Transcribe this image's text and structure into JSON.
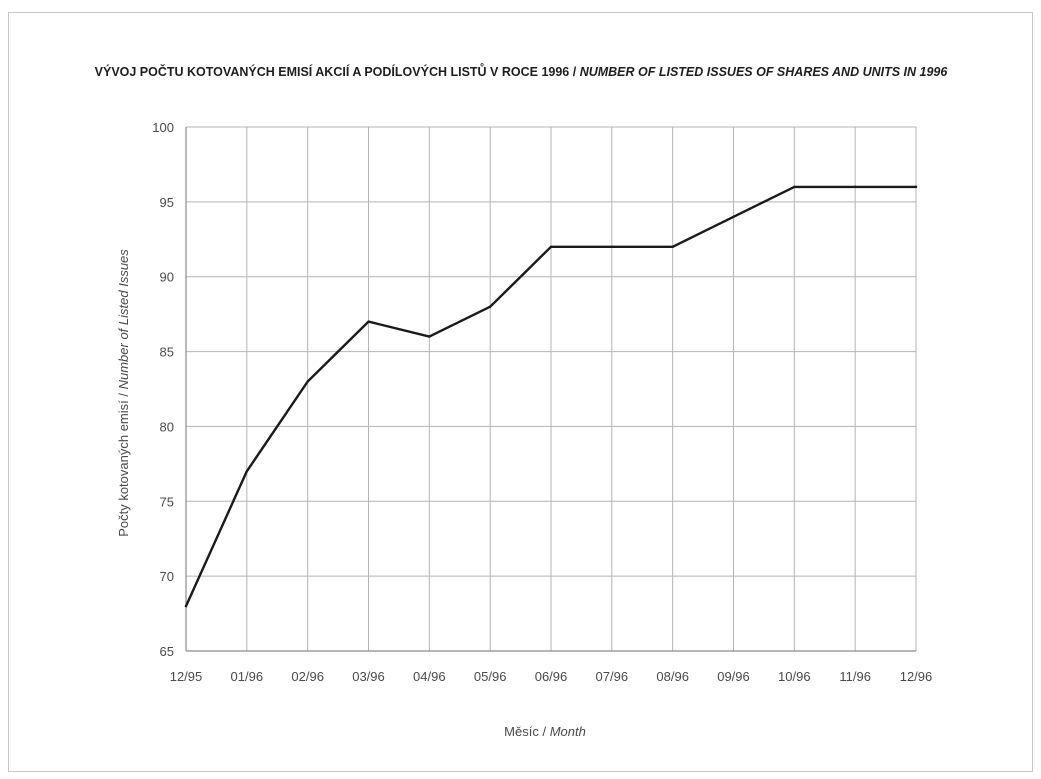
{
  "chart_data": {
    "type": "line",
    "title_cz": "VÝVOJ POČTU KOTOVANÝCH EMISÍ AKCIÍ A PODÍLOVÝCH LISTŮ V ROCE 1996",
    "title_separator": " / ",
    "title_en": "NUMBER OF LISTED ISSUES OF SHARES AND UNITS IN 1996",
    "xlabel_cz": "Měsíc",
    "xlabel_separator": " / ",
    "xlabel_en": "Month",
    "ylabel_cz": "Počty kotovaných emisí",
    "ylabel_separator": " / ",
    "ylabel_en": "Number of  Listed Issues",
    "categories": [
      "12/95",
      "01/96",
      "02/96",
      "03/96",
      "04/96",
      "05/96",
      "06/96",
      "07/96",
      "08/96",
      "09/96",
      "10/96",
      "11/96",
      "12/96"
    ],
    "yticks": [
      "65",
      "70",
      "75",
      "80",
      "85",
      "90",
      "95",
      "100"
    ],
    "ylim": [
      65,
      100
    ],
    "grid": true,
    "series": [
      {
        "values": [
          68,
          77,
          83,
          87,
          86,
          88,
          92,
          92,
          92,
          94,
          96,
          96,
          96
        ]
      }
    ],
    "line_color": "#1a1a1a",
    "grid_color": "#b4b4b4"
  }
}
